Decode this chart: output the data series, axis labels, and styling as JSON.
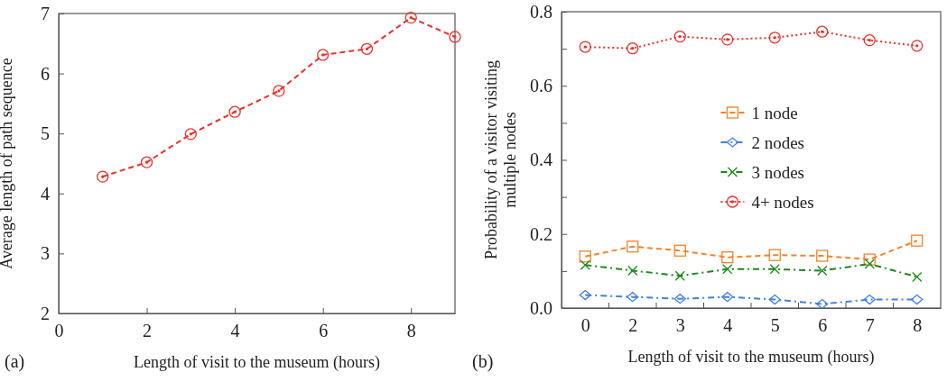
{
  "chart_data": [
    {
      "type": "line",
      "xlabel": "Length of visit to the museum (hours)",
      "ylabel": "Average length of path sequence",
      "annotations": [
        "(a)"
      ],
      "x": [
        1,
        2,
        3,
        4,
        5,
        6,
        7,
        8,
        9
      ],
      "series": [
        {
          "color": "#e8302a",
          "values": [
            4.28,
            4.52,
            4.99,
            5.36,
            5.71,
            6.31,
            6.41,
            6.93,
            6.61
          ],
          "marker": "circle",
          "line_style": "dashed"
        }
      ],
      "xlim": [
        0,
        9
      ],
      "xticks": [
        0,
        2,
        4,
        6,
        8
      ],
      "ylim": [
        2,
        7
      ],
      "yticks": [
        2,
        3,
        4,
        5,
        6,
        7
      ],
      "grid": false,
      "legend": false
    },
    {
      "type": "line",
      "xlabel": "Length of visit to the museum (hours)",
      "ylabel": "Probability of a visitor visiting multiple nodes",
      "annotations": [
        "(b)"
      ],
      "categories": [
        "0",
        "2",
        "3",
        "4",
        "5",
        "6",
        "7",
        "8"
      ],
      "series": [
        {
          "name": "1 node",
          "color": "#f5822a",
          "marker": "square",
          "line_style": "dashed",
          "values": [
            0.139,
            0.166,
            0.155,
            0.137,
            0.143,
            0.141,
            0.131,
            0.182
          ]
        },
        {
          "name": "2 nodes",
          "color": "#3f7fe8",
          "marker": "diamond",
          "line_style": "dashdot",
          "values": [
            0.035,
            0.03,
            0.025,
            0.03,
            0.023,
            0.011,
            0.023,
            0.023
          ]
        },
        {
          "name": "3 nodes",
          "color": "#1a8a1a",
          "marker": "cross",
          "line_style": "dashdot",
          "values": [
            0.116,
            0.101,
            0.087,
            0.105,
            0.105,
            0.101,
            0.119,
            0.084
          ]
        },
        {
          "name": "4+ nodes",
          "color": "#e8302a",
          "marker": "circle",
          "line_style": "dotted",
          "values": [
            0.705,
            0.701,
            0.733,
            0.725,
            0.73,
            0.746,
            0.723,
            0.708
          ]
        }
      ],
      "ylim": [
        0,
        0.8
      ],
      "yticks": [
        {
          "value": 0,
          "label": "0.0"
        },
        {
          "value": 0.1,
          "label": null
        },
        {
          "value": 0.2,
          "label": "0.2"
        },
        {
          "value": 0.3,
          "label": null
        },
        {
          "value": 0.4,
          "label": "0.4"
        },
        {
          "value": 0.5,
          "label": null
        },
        {
          "value": 0.6,
          "label": "0.6"
        },
        {
          "value": 0.7,
          "label": null
        },
        {
          "value": 0.8,
          "label": "0.8"
        }
      ],
      "grid": false,
      "legend": "right"
    }
  ]
}
